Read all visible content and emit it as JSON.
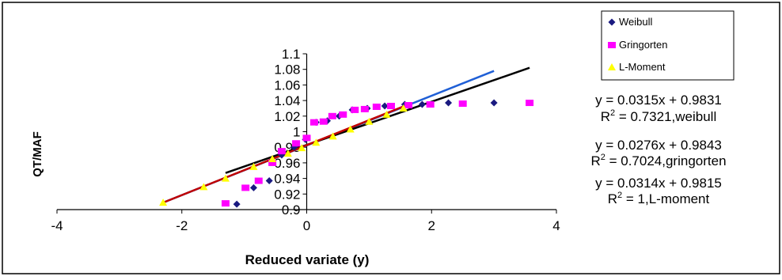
{
  "chart_data": {
    "type": "scatter",
    "xlabel": "Reduced variate (y)",
    "ylabel": "QT/MAF",
    "xlim": [
      -4,
      4
    ],
    "ylim": [
      0.9,
      1.1
    ],
    "x_ticks": [
      "-4",
      "-2",
      "0",
      "2",
      "4"
    ],
    "y_ticks": [
      "1.1",
      "1.08",
      "1.06",
      "1.04",
      "1.02",
      "1",
      "0.98",
      "0.96",
      "0.94",
      "0.92",
      "0.9"
    ],
    "grid": false,
    "legend_position": "top-right",
    "series": [
      {
        "name": "Weibull",
        "marker": "diamond",
        "color": "#1a1a80",
        "x": [
          -1.12,
          -0.85,
          -0.6,
          -0.4,
          -0.2,
          -0.02,
          0.15,
          0.33,
          0.52,
          0.73,
          0.97,
          1.25,
          1.57,
          1.85,
          2.27,
          3.0
        ],
        "y": [
          0.907,
          0.928,
          0.937,
          0.97,
          0.98,
          0.99,
          1.012,
          1.014,
          1.02,
          1.028,
          1.03,
          1.033,
          1.035,
          1.035,
          1.037,
          1.037
        ]
      },
      {
        "name": "Gringorten",
        "marker": "square",
        "color": "#ff00ff",
        "x": [
          -1.3,
          -0.98,
          -0.77,
          -0.55,
          -0.4,
          -0.17,
          0.0,
          0.12,
          0.27,
          0.41,
          0.58,
          0.77,
          0.93,
          1.12,
          1.35,
          1.63,
          1.98,
          2.5,
          3.57
        ],
        "y": [
          0.908,
          0.928,
          0.937,
          0.96,
          0.975,
          0.985,
          0.992,
          1.012,
          1.013,
          1.02,
          1.022,
          1.028,
          1.029,
          1.032,
          1.033,
          1.034,
          1.035,
          1.036,
          1.037
        ]
      },
      {
        "name": "L-Moment",
        "marker": "triangle",
        "color": "#ffff00",
        "x": [
          -2.3,
          -1.65,
          -1.3,
          -0.85,
          -0.55,
          -0.3,
          -0.08,
          0.15,
          0.42,
          0.7,
          1.0,
          1.28,
          1.55
        ],
        "y": [
          0.909,
          0.929,
          0.94,
          0.955,
          0.965,
          0.972,
          0.979,
          0.986,
          0.994,
          1.003,
          1.013,
          1.022,
          1.03
        ]
      }
    ],
    "trendlines": [
      {
        "color": "#1f5fd6",
        "x": [
          -2.3,
          3.0
        ],
        "y": [
          0.909,
          1.078
        ]
      },
      {
        "color": "#000000",
        "x": [
          -1.3,
          3.57
        ],
        "y": [
          0.947,
          1.082
        ]
      },
      {
        "color": "#c00000",
        "x": [
          -2.3,
          1.6
        ],
        "y": [
          0.909,
          1.034
        ]
      }
    ],
    "annotations": [
      {
        "line1": "y = 0.0315x + 0.9831",
        "line2_prefix": "R",
        "line2_sup": "2",
        "line2_suffix": " = 0.7321,weibull"
      },
      {
        "line1": "y = 0.0276x + 0.9843",
        "line2_prefix": "R",
        "line2_sup": "2",
        "line2_suffix": " = 0.7024,gringorten"
      },
      {
        "line1": "y = 0.0314x + 0.9815",
        "line2_prefix": "R",
        "line2_sup": "2",
        "line2_suffix": " = 1,L-moment"
      }
    ]
  }
}
